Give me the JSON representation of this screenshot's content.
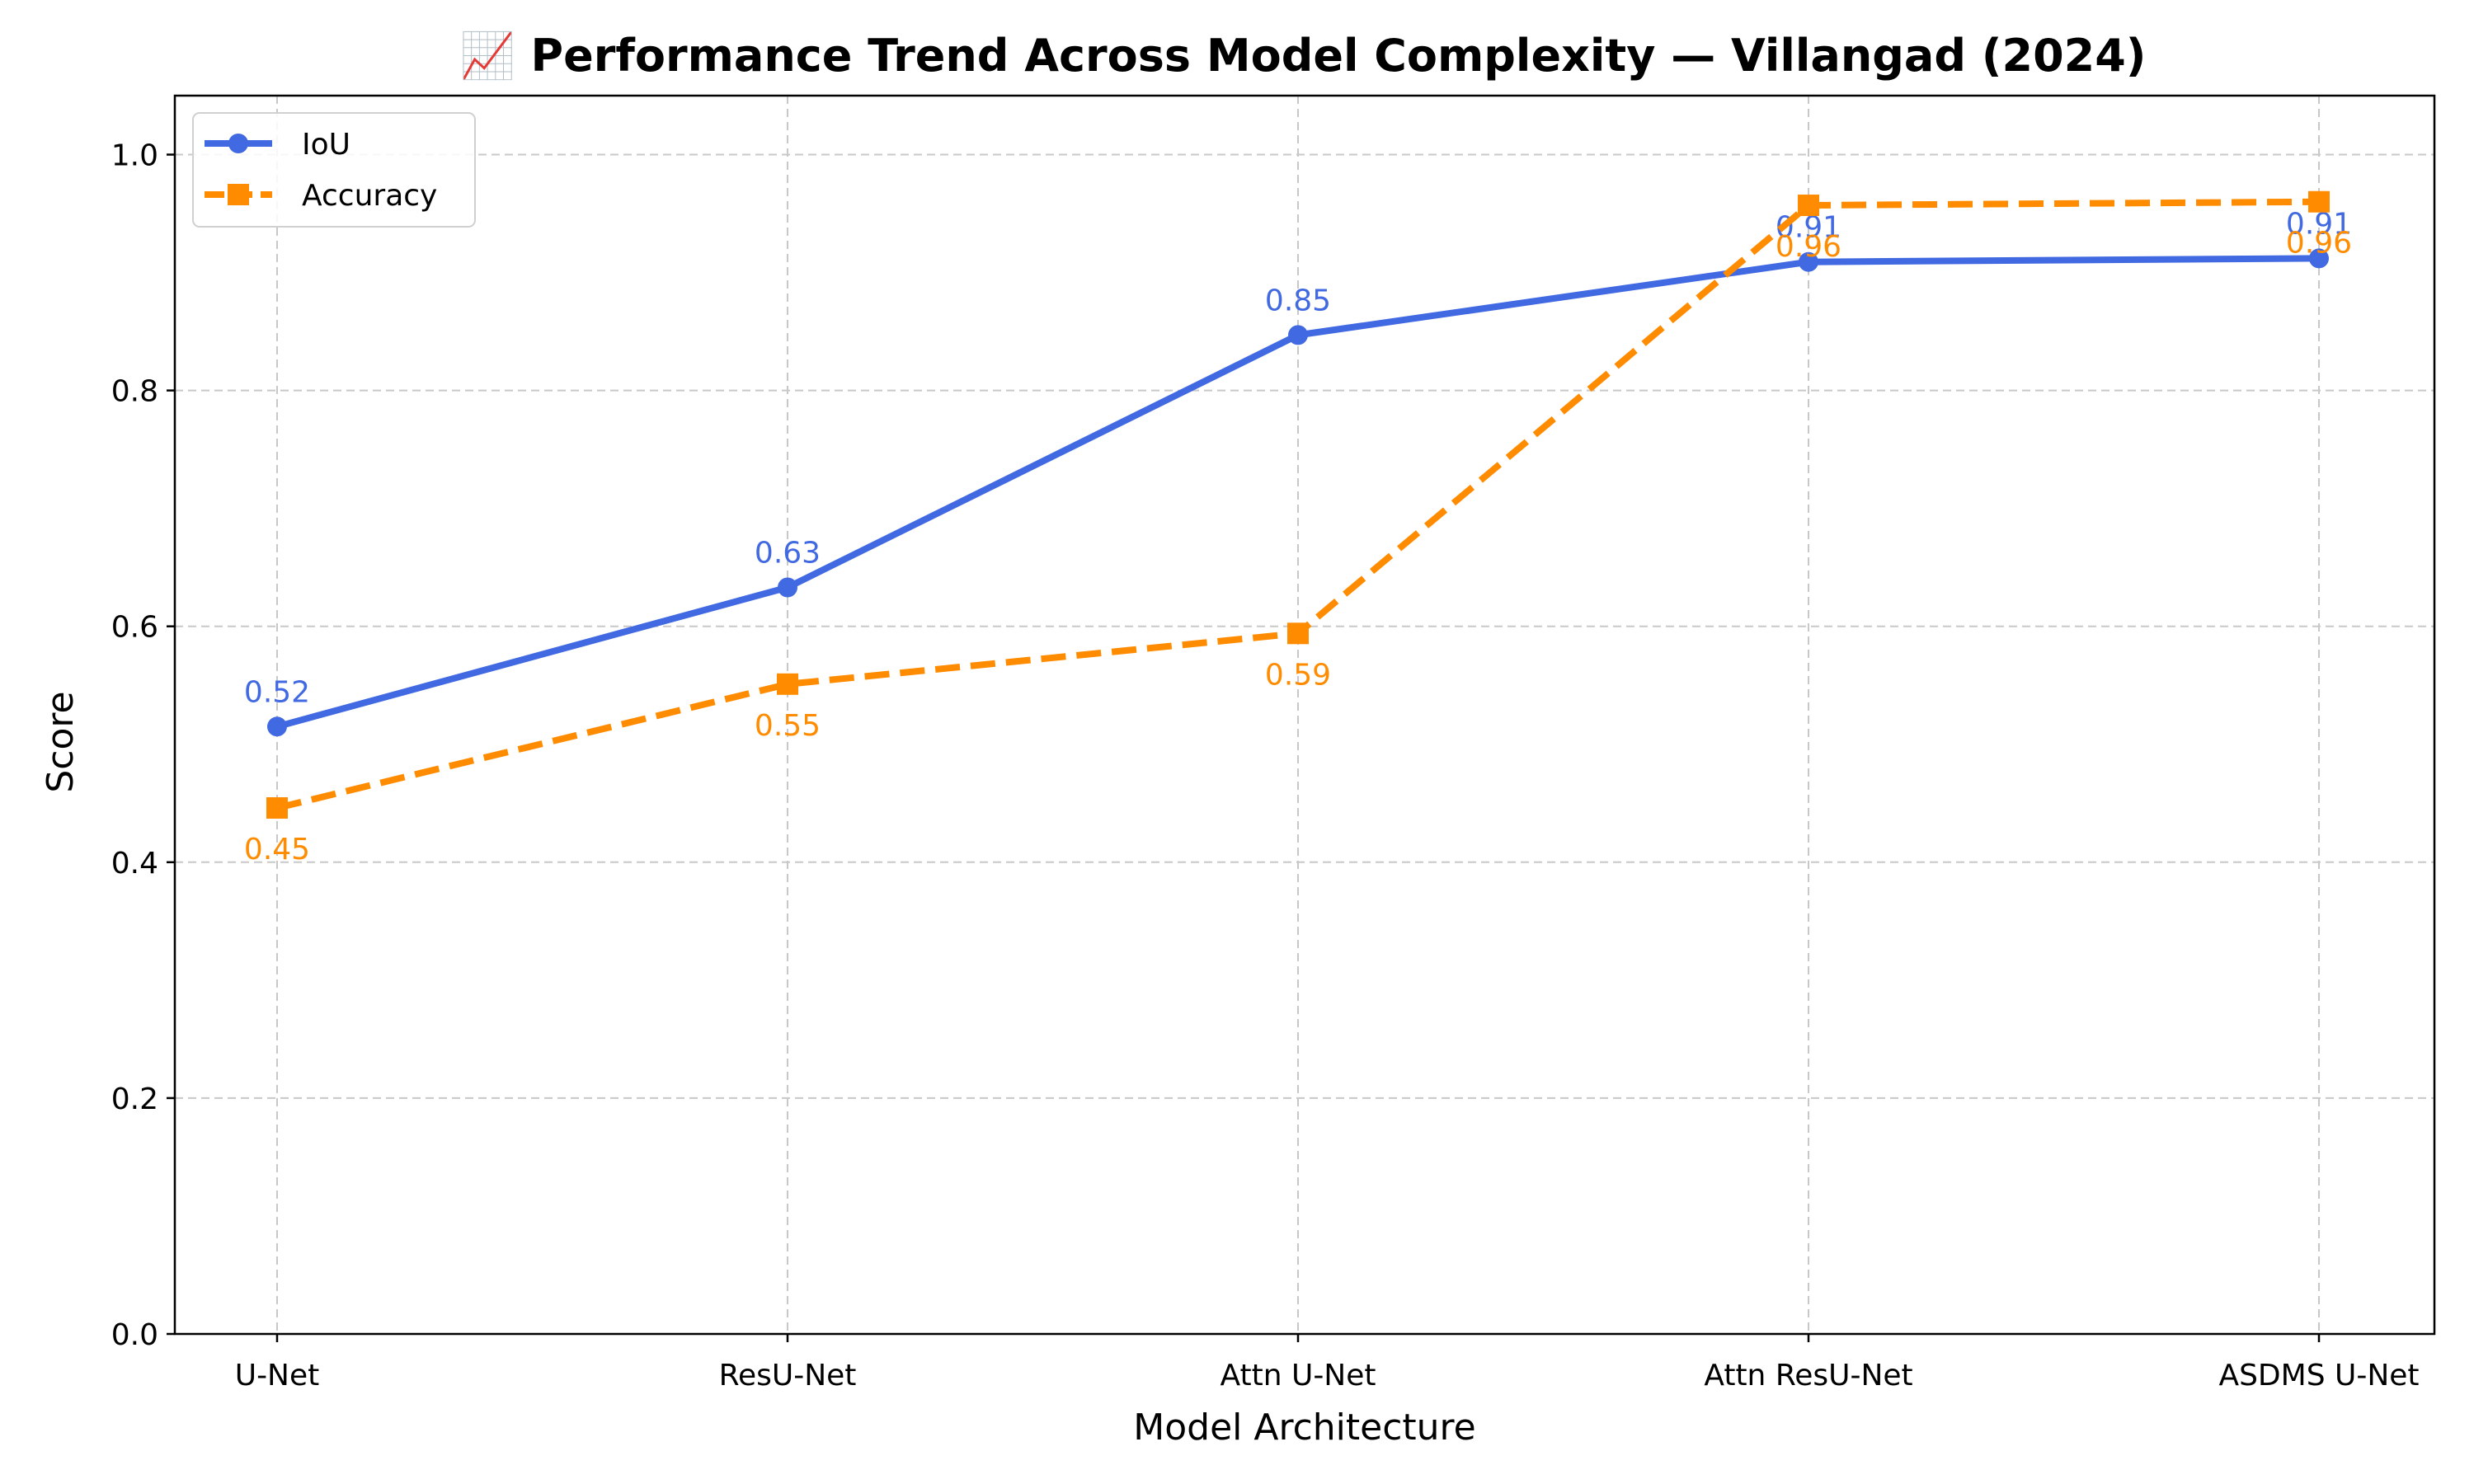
{
  "chart_data": {
    "type": "line",
    "title": "📈 Performance Trend Across Model Complexity — Villangad (2024)",
    "xlabel": "Model Architecture",
    "ylabel": "Score",
    "categories": [
      "U-Net",
      "ResU-Net",
      "Attn U-Net",
      "Attn ResU-Net",
      "ASDMS U-Net"
    ],
    "ylim": [
      0,
      1.05
    ],
    "yticks": [
      "0.0",
      "0.2",
      "0.4",
      "0.6",
      "0.8",
      "1.0"
    ],
    "grid": true,
    "legend_position": "top-left",
    "series": [
      {
        "name": "IoU",
        "values": [
          0.515,
          0.633,
          0.847,
          0.909,
          0.912
        ],
        "labels": [
          "0.52",
          "0.63",
          "0.85",
          "0.91",
          "0.91"
        ],
        "color": "#4169E1",
        "line_style": "solid",
        "marker": "circle",
        "label_position": "above"
      },
      {
        "name": "Accuracy",
        "values": [
          0.446,
          0.551,
          0.594,
          0.957,
          0.96
        ],
        "labels": [
          "0.45",
          "0.55",
          "0.59",
          "0.96",
          "0.96"
        ],
        "color": "#FF8C00",
        "line_style": "dashed",
        "marker": "square",
        "label_position": "below"
      }
    ]
  }
}
